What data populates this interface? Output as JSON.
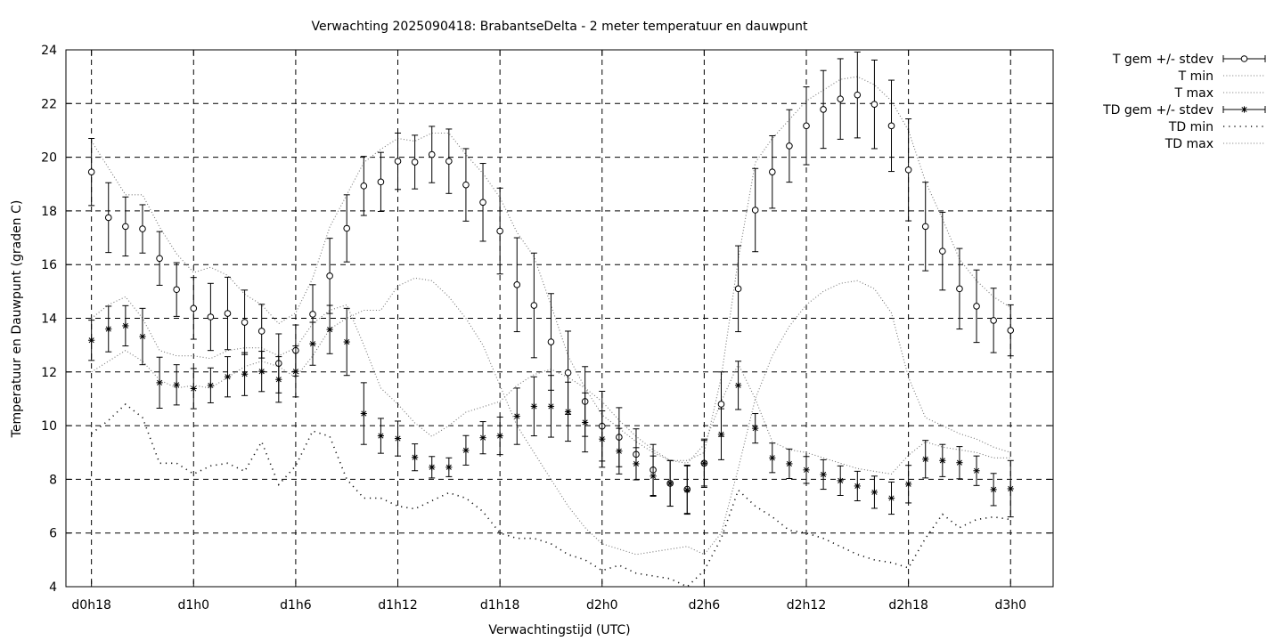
{
  "chart_data": {
    "type": "line",
    "title": "Verwachting 2025090418: BrabantseDelta - 2 meter temperatuur en dauwpunt",
    "xlabel": "Verwachtingstijd (UTC)",
    "ylabel": "Temperatuur en Dauwpunt (graden C)",
    "ylim": [
      4,
      24
    ],
    "yticks": [
      "4",
      "6",
      "8",
      "10",
      "12",
      "14",
      "16",
      "18",
      "20",
      "22",
      "24"
    ],
    "xlim": [
      -1.5,
      56.5
    ],
    "xticks": [
      {
        "x": 0,
        "label": "d0h18"
      },
      {
        "x": 6,
        "label": "d1h0"
      },
      {
        "x": 12,
        "label": "d1h6"
      },
      {
        "x": 18,
        "label": "d1h12"
      },
      {
        "x": 24,
        "label": "d1h18"
      },
      {
        "x": 30,
        "label": "d2h0"
      },
      {
        "x": 36,
        "label": "d2h6"
      },
      {
        "x": 42,
        "label": "d2h12"
      },
      {
        "x": 48,
        "label": "d2h18"
      },
      {
        "x": 54,
        "label": "d3h0"
      }
    ],
    "grid": true,
    "legend_position": "outside-top-right",
    "x": [
      0,
      1,
      2,
      3,
      4,
      5,
      6,
      7,
      8,
      9,
      10,
      11,
      12,
      13,
      14,
      15,
      16,
      17,
      18,
      19,
      20,
      21,
      22,
      23,
      24,
      25,
      26,
      27,
      28,
      29,
      30,
      31,
      32,
      33,
      34,
      35,
      36,
      37,
      38,
      39,
      40,
      41,
      42,
      43,
      44,
      45,
      46,
      47,
      48,
      49,
      50,
      51,
      52,
      53,
      54
    ],
    "series": [
      {
        "name": "T gem +/- stdev",
        "style": "circle-errorbars",
        "values": [
          19.45,
          17.75,
          17.42,
          17.33,
          16.23,
          15.07,
          14.37,
          14.05,
          14.18,
          13.85,
          13.52,
          12.32,
          12.8,
          14.15,
          15.58,
          17.35,
          18.93,
          19.08,
          19.85,
          19.82,
          20.1,
          19.85,
          18.97,
          18.32,
          17.25,
          15.25,
          14.48,
          13.12,
          11.97,
          10.9,
          9.98,
          9.57,
          8.93,
          8.35,
          7.85,
          7.63,
          8.6,
          10.8,
          15.1,
          18.03,
          19.45,
          20.42,
          21.17,
          21.78,
          22.17,
          22.32,
          21.97,
          21.17,
          19.53,
          17.42,
          16.5,
          15.1,
          14.45,
          13.92,
          13.55
        ],
        "stdev": [
          1.25,
          1.3,
          1.1,
          0.9,
          1.0,
          1.0,
          1.15,
          1.25,
          1.35,
          1.2,
          1.0,
          1.1,
          0.95,
          1.1,
          1.4,
          1.25,
          1.1,
          1.1,
          1.05,
          1.0,
          1.05,
          1.2,
          1.35,
          1.45,
          1.6,
          1.75,
          1.95,
          1.8,
          1.55,
          1.3,
          1.3,
          1.1,
          0.95,
          0.95,
          0.85,
          0.9,
          0.9,
          1.2,
          1.6,
          1.55,
          1.35,
          1.35,
          1.45,
          1.45,
          1.5,
          1.6,
          1.65,
          1.7,
          1.9,
          1.65,
          1.45,
          1.5,
          1.35,
          1.2,
          0.95
        ]
      },
      {
        "name": "T min",
        "style": "dotted",
        "values": [
          12.0,
          12.4,
          12.8,
          12.4,
          11.7,
          11.4,
          11.5,
          11.4,
          11.8,
          12.2,
          12.4,
          12.2,
          11.8,
          12.6,
          13.6,
          14.0,
          14.3,
          14.3,
          15.2,
          15.5,
          15.4,
          14.8,
          14.0,
          13.0,
          11.5,
          10.0,
          9.0,
          8.0,
          7.0,
          6.2,
          5.6,
          5.4,
          5.2,
          5.3,
          5.4,
          5.5,
          5.2,
          6.0,
          8.4,
          11.0,
          12.6,
          13.7,
          14.5,
          15.0,
          15.3,
          15.4,
          15.1,
          14.2,
          11.8,
          10.3,
          10.0,
          9.7,
          9.5,
          9.2,
          9.0
        ]
      },
      {
        "name": "T max",
        "style": "dotted",
        "values": [
          20.6,
          19.6,
          18.6,
          18.6,
          17.4,
          16.4,
          15.7,
          15.9,
          15.6,
          14.9,
          14.5,
          13.8,
          14.2,
          15.5,
          17.4,
          18.6,
          19.8,
          20.3,
          20.7,
          20.6,
          20.9,
          20.9,
          20.1,
          19.4,
          18.5,
          17.2,
          16.3,
          14.5,
          12.6,
          11.4,
          10.4,
          9.9,
          9.4,
          9.0,
          8.7,
          8.7,
          9.0,
          11.8,
          16.2,
          19.8,
          20.7,
          21.4,
          22.1,
          22.5,
          22.9,
          23.0,
          22.7,
          22.1,
          21.0,
          19.1,
          17.7,
          16.2,
          15.4,
          14.8,
          14.4
        ]
      },
      {
        "name": "TD gem +/- stdev",
        "style": "star-errorbars",
        "values": [
          13.18,
          13.6,
          13.72,
          13.32,
          11.6,
          11.52,
          11.38,
          11.5,
          11.82,
          11.92,
          12.02,
          11.72,
          12.02,
          13.05,
          13.58,
          13.12,
          10.45,
          9.62,
          9.52,
          8.82,
          8.45,
          8.45,
          9.08,
          9.55,
          9.62,
          10.35,
          10.72,
          10.72,
          10.52,
          10.12,
          9.5,
          9.05,
          8.58,
          8.12,
          7.85,
          7.6,
          8.6,
          9.68,
          11.5,
          9.9,
          8.8,
          8.58,
          8.35,
          8.18,
          7.95,
          7.75,
          7.52,
          7.3,
          7.82,
          8.75,
          8.7,
          8.62,
          8.32,
          7.62,
          7.65
        ],
        "stdev": [
          0.75,
          0.85,
          0.75,
          1.05,
          0.95,
          0.75,
          0.75,
          0.65,
          0.75,
          0.8,
          0.75,
          0.85,
          0.95,
          0.8,
          0.9,
          1.25,
          1.15,
          0.65,
          0.65,
          0.5,
          0.4,
          0.35,
          0.55,
          0.6,
          0.7,
          1.05,
          1.1,
          1.15,
          1.1,
          1.1,
          1.05,
          0.85,
          0.6,
          0.75,
          0.85,
          0.9,
          0.85,
          0.95,
          0.9,
          0.55,
          0.55,
          0.55,
          0.5,
          0.55,
          0.55,
          0.55,
          0.6,
          0.6,
          0.7,
          0.7,
          0.6,
          0.6,
          0.55,
          0.6,
          1.05
        ]
      },
      {
        "name": "TD min",
        "style": "sparse-dotted",
        "values": [
          9.7,
          10.2,
          10.8,
          10.3,
          8.6,
          8.6,
          8.2,
          8.5,
          8.6,
          8.3,
          9.4,
          7.8,
          8.5,
          9.8,
          9.6,
          8.0,
          7.3,
          7.3,
          7.0,
          6.9,
          7.2,
          7.5,
          7.3,
          6.8,
          6.0,
          5.8,
          5.8,
          5.6,
          5.2,
          5.0,
          4.6,
          4.8,
          4.5,
          4.4,
          4.3,
          4.0,
          4.6,
          5.8,
          7.6,
          7.0,
          6.6,
          6.1,
          6.0,
          5.8,
          5.5,
          5.2,
          5.0,
          4.9,
          4.7,
          5.8,
          6.7,
          6.2,
          6.5,
          6.6,
          6.5
        ]
      },
      {
        "name": "TD max",
        "style": "dotted",
        "values": [
          14.0,
          14.5,
          14.8,
          14.0,
          12.8,
          12.6,
          12.6,
          12.5,
          12.8,
          12.9,
          12.9,
          12.6,
          12.9,
          13.8,
          14.3,
          14.5,
          13.0,
          11.4,
          10.8,
          10.1,
          9.6,
          10.0,
          10.5,
          10.7,
          10.9,
          11.5,
          11.9,
          12.1,
          11.8,
          11.4,
          10.9,
          10.2,
          9.6,
          9.1,
          8.7,
          8.6,
          9.3,
          10.9,
          12.3,
          11.0,
          9.4,
          9.1,
          9.0,
          8.8,
          8.6,
          8.4,
          8.3,
          8.2,
          8.9,
          9.4,
          9.2,
          9.1,
          9.0,
          8.8,
          8.8
        ]
      }
    ]
  }
}
